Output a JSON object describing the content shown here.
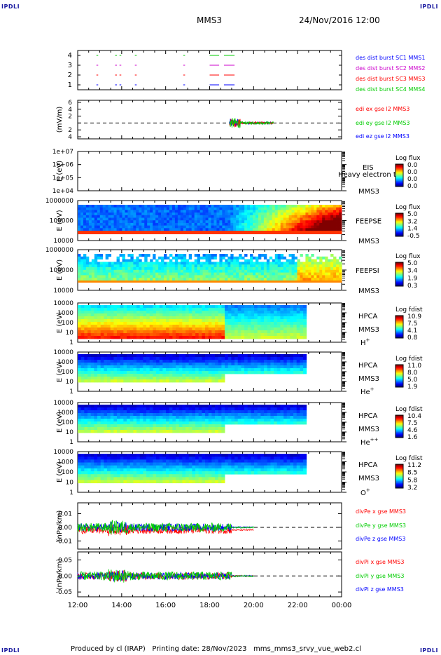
{
  "corner_labels": {
    "tl": "IPDLI",
    "tr": "IPDLI",
    "bl": "IPDLI",
    "br": "IPDLI"
  },
  "header": {
    "spacecraft": "MMS3",
    "datetime": "24/Nov/2016 12:00"
  },
  "footer": {
    "text": "Produced by cl (IRAP)   Printing date: 28/Nov/2023   mms_mms3_srvy_vue_web2.cl"
  },
  "time_axis": {
    "ticks": [
      "12:00",
      "14:00",
      "16:00",
      "18:00",
      "20:00",
      "22:00",
      "00:00"
    ],
    "range_hours": [
      12,
      24
    ]
  },
  "colors": {
    "mms1": "#0000ff",
    "mms2": "#cc00cc",
    "mms3": "#ff0000",
    "mms4": "#00cc00",
    "x": "#ff0000",
    "y": "#00cc00",
    "z": "#0000ff",
    "ex": "#ff0000",
    "ey": "#00cc00",
    "ez": "#0000ff"
  },
  "chart_data": [
    {
      "id": "burst",
      "type": "scatter",
      "ylim": [
        0.5,
        4.5
      ],
      "ytick_labels": [
        "1",
        "2",
        "3",
        "4"
      ],
      "legend": [
        "des dist burst SC1 MMS1",
        "des dist burst SC2 MMS2",
        "des dist burst SC3 MMS3",
        "des dist burst SC4 MMS4"
      ],
      "intervals": [
        [
          12.85,
          12.9
        ],
        [
          13.7,
          13.75
        ],
        [
          13.9,
          13.95
        ],
        [
          14.6,
          14.65
        ],
        [
          16.8,
          16.85
        ],
        [
          18.0,
          18.4
        ],
        [
          18.65,
          19.1
        ]
      ]
    },
    {
      "id": "efield",
      "type": "line",
      "ylabel": "(mV/m)",
      "ylim": [
        -4.6,
        6.6
      ],
      "yticks": [
        6,
        4,
        2,
        0,
        -2,
        -4
      ],
      "ytick_labels": [
        "6",
        "4",
        "2",
        "",
        "2",
        "4"
      ],
      "legend": [
        "edi ex gse l2 MMS3",
        "edi ey gse l2 MMS3",
        "edi ez gse l2 MMS3"
      ],
      "x_range": [
        18.9,
        20.9
      ],
      "zero_line": true
    },
    {
      "id": "eis",
      "type": "heatmap",
      "ylabel": "E (eV)",
      "yticks": [
        "1e+07",
        "1e+06",
        "1e+05",
        "1e+04"
      ],
      "instrument": "EIS",
      "spacecraft": "MMS3",
      "overlay": "Heavy electron tof",
      "colorbar_title": "Log flux",
      "colorbar_ticks": [
        "0.0",
        "0.0",
        "0.0",
        "0.0"
      ]
    },
    {
      "id": "feeps_e",
      "type": "heatmap",
      "ylabel": "E (eV)",
      "yticks": [
        "1000000",
        "100000",
        "10000"
      ],
      "instrument": "FEEPSE",
      "spacecraft": "MMS3",
      "colorbar_title": "Log flux",
      "colorbar_ticks": [
        "5.0",
        "3.2",
        "1.4",
        "-0.5"
      ]
    },
    {
      "id": "feeps_i",
      "type": "heatmap",
      "ylabel": "E (eV)",
      "yticks": [
        "1000000",
        "100000",
        "10000"
      ],
      "instrument": "FEEPSI",
      "spacecraft": "MMS3",
      "colorbar_title": "Log flux",
      "colorbar_ticks": [
        "5.0",
        "3.4",
        "1.9",
        "0.3"
      ]
    },
    {
      "id": "hpca_h",
      "type": "heatmap",
      "ylabel": "E (eV)",
      "yticks": [
        "10000",
        "1000",
        "100",
        "10",
        "1"
      ],
      "instrument": "HPCA",
      "spacecraft": "MMS3",
      "species": "H",
      "species_charge": "+",
      "colorbar_title": "Log fdist",
      "colorbar_ticks": [
        "10.9",
        "7.5",
        "4.1",
        "0.8"
      ]
    },
    {
      "id": "hpca_he1",
      "type": "heatmap",
      "ylabel": "E (eV)",
      "yticks": [
        "10000",
        "1000",
        "100",
        "10",
        "1"
      ],
      "instrument": "HPCA",
      "spacecraft": "MMS3",
      "species": "He",
      "species_charge": "+",
      "colorbar_title": "Log fdist",
      "colorbar_ticks": [
        "11.0",
        "8.0",
        "5.0",
        "1.9"
      ]
    },
    {
      "id": "hpca_he2",
      "type": "heatmap",
      "ylabel": "E (eV)",
      "yticks": [
        "10000",
        "1000",
        "100",
        "10",
        "1"
      ],
      "instrument": "HPCA",
      "spacecraft": "MMS3",
      "species": "He",
      "species_charge": "++",
      "colorbar_title": "Log fdist",
      "colorbar_ticks": [
        "10.4",
        "7.5",
        "4.6",
        "1.6"
      ]
    },
    {
      "id": "hpca_o",
      "type": "heatmap",
      "ylabel": "E (eV)",
      "yticks": [
        "10000",
        "1000",
        "100",
        "10",
        "1"
      ],
      "instrument": "HPCA",
      "spacecraft": "MMS3",
      "species": "O",
      "species_charge": "+",
      "colorbar_title": "Log fdist",
      "colorbar_ticks": [
        "11.2",
        "8.5",
        "5.8",
        "3.2"
      ]
    },
    {
      "id": "divpe",
      "type": "line",
      "ylabel": "(nPa/km)",
      "ylim": [
        -0.016,
        0.018
      ],
      "yticks": [
        0.01,
        0.0,
        -0.01
      ],
      "ytick_labels": [
        "0.01",
        "0.00",
        "-0.01"
      ],
      "legend": [
        "divPe x gse MMS3",
        "divPe y gse MMS3",
        "divPe z gse MMS3"
      ],
      "x_range": [
        12.0,
        20.0
      ],
      "zero_line": true
    },
    {
      "id": "divpi",
      "type": "line",
      "ylabel": "(nPa/km)",
      "ylim": [
        -0.065,
        0.075
      ],
      "yticks": [
        0.05,
        0.0,
        -0.05
      ],
      "ytick_labels": [
        "0.05",
        "0.00",
        "-0.05"
      ],
      "legend": [
        "divPi x gse MMS3",
        "divPi y gse MMS3",
        "divPi z gse MMS3"
      ],
      "x_range": [
        12.0,
        20.0
      ],
      "zero_line": true
    }
  ]
}
